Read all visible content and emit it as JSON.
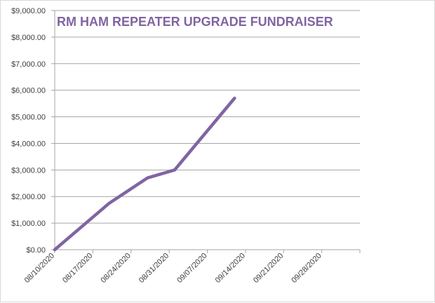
{
  "chart_data": {
    "type": "line",
    "title": "RM HAM REPEATER UPGRADE FUNDRAISER",
    "xlabel": "",
    "ylabel": "",
    "x_ticks": [
      "08/10/2020",
      "08/17/2020",
      "08/24/2020",
      "08/31/2020",
      "09/07/2020",
      "09/14/2020",
      "09/21/2020",
      "09/28/2020"
    ],
    "y_ticks": [
      "$0.00",
      "$1,000.00",
      "$2,000.00",
      "$3,000.00",
      "$4,000.00",
      "$5,000.00",
      "$6,000.00",
      "$7,000.00",
      "$8,000.00",
      "$9,000.00"
    ],
    "ylim": [
      0,
      9000
    ],
    "xlim": [
      "2020-08-10",
      "2020-10-05"
    ],
    "grid": true,
    "legend": "none",
    "series": [
      {
        "x": [
          "2020-08-10",
          "2020-08-20",
          "2020-08-27",
          "2020-09-01",
          "2020-09-12"
        ],
        "values": [
          0,
          1750,
          2700,
          3000,
          5700
        ]
      }
    ],
    "colors": {
      "line": "#8064a2",
      "grid": "#a6a6a6",
      "axis": "#a6a6a6"
    }
  }
}
